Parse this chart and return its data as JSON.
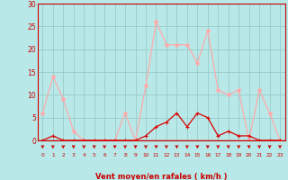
{
  "hours": [
    0,
    1,
    2,
    3,
    4,
    5,
    6,
    7,
    8,
    9,
    10,
    11,
    12,
    13,
    14,
    15,
    16,
    17,
    18,
    19,
    20,
    21,
    22,
    23
  ],
  "wind_avg": [
    0,
    1,
    0,
    0,
    0,
    0,
    0,
    0,
    0,
    0,
    1,
    3,
    4,
    6,
    3,
    6,
    5,
    1,
    2,
    1,
    1,
    0,
    0,
    0
  ],
  "wind_gust": [
    6,
    14,
    9,
    2,
    0,
    0,
    0,
    0,
    6,
    0,
    12,
    26,
    21,
    21,
    21,
    17,
    24,
    11,
    10,
    11,
    0,
    11,
    6,
    0
  ],
  "color_avg": "#dd0000",
  "color_gust": "#ffaaaa",
  "bg_color": "#b8e8e8",
  "grid_color": "#99cccc",
  "xlabel": "Vent moyen/en rafales ( km/h )",
  "yticks": [
    0,
    5,
    10,
    15,
    20,
    25,
    30
  ],
  "ylim": [
    0,
    30
  ],
  "axis_color": "#cc0000"
}
